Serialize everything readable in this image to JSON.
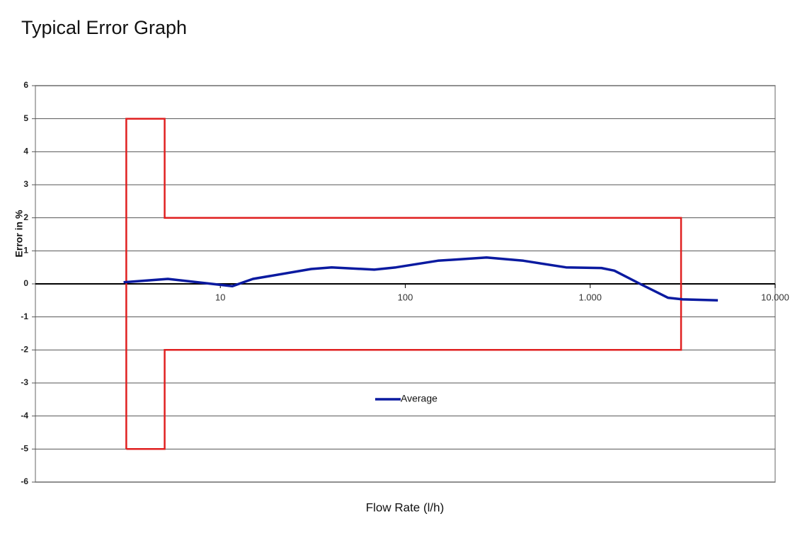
{
  "chart_data": {
    "type": "line",
    "title": "Typical Error Graph",
    "x_label": "Flow Rate (l/h)",
    "y_label": "Error in %",
    "x_scale": "log",
    "xlim": [
      1,
      10000
    ],
    "ylim": [
      -6,
      6
    ],
    "xticks": [
      10,
      100,
      {
        "value": 1000,
        "label": "1.000"
      },
      {
        "value": 10000,
        "label": "10.000"
      }
    ],
    "yticks": [
      -6,
      -5,
      -4,
      -3,
      -2,
      -1,
      0,
      1,
      2,
      3,
      4,
      5,
      6
    ],
    "grid": true,
    "series": [
      {
        "name": "Average",
        "color": "#0a1aa0",
        "x": [
          3.0,
          5.2,
          9,
          11.6,
          15,
          31,
          40,
          68,
          89,
          150,
          275,
          435,
          740,
          1150,
          1350,
          1860,
          2630,
          3160,
          4900
        ],
        "values": [
          0.05,
          0.15,
          0.0,
          -0.07,
          0.15,
          0.45,
          0.5,
          0.43,
          0.5,
          0.7,
          0.8,
          0.7,
          0.5,
          0.48,
          0.4,
          0.0,
          -0.42,
          -0.47,
          -0.5
        ]
      }
    ],
    "limit": {
      "color": "#e02020",
      "x": [
        3.1,
        3.1,
        5,
        5,
        3100,
        3100,
        5,
        5,
        3.1
      ],
      "values": [
        -5,
        5,
        5,
        2,
        2,
        -2,
        -2,
        -5,
        -5
      ]
    }
  }
}
